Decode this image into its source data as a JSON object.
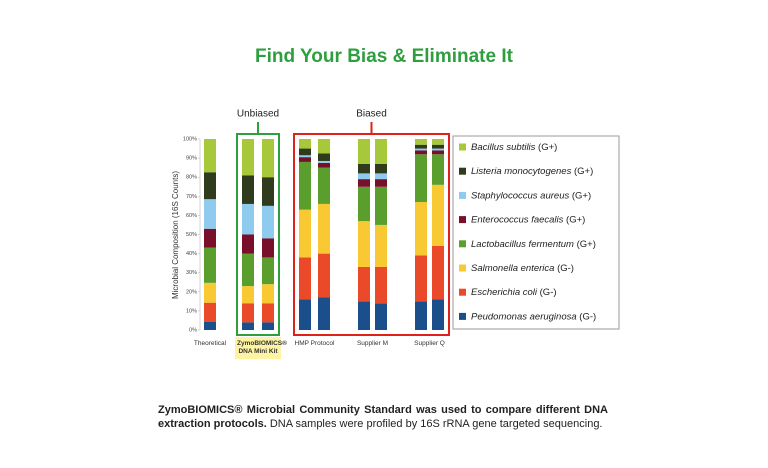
{
  "chart_data": {
    "type": "stacked_bar",
    "title": "Find Your Bias & Eliminate It",
    "y_label": "Microbial Composition (16S Counts)",
    "categories": [
      "Theoretical",
      "ZymoBIOMICS® DNA Mini Kit",
      null,
      "HMP Protocol",
      null,
      "Supplier M",
      null,
      "Supplier Q",
      null
    ],
    "highlight_category": 1,
    "annotations": [
      {
        "text": "Unbiased",
        "color": "#2e9e3e",
        "from": 1,
        "to": 2
      },
      {
        "text": "Biased",
        "color": "#e0201b",
        "from": 3,
        "to": 8
      }
    ],
    "series": [
      {
        "name": "Bacillus subtilis (G+)",
        "color": "#a8c83c",
        "values": [
          17.4,
          19,
          20,
          5,
          7.5,
          13,
          13,
          3,
          3
        ]
      },
      {
        "name": "Listeria monocytogenes (G+)",
        "color": "#2f3b1c",
        "values": [
          14.1,
          15,
          15,
          3.5,
          4,
          5,
          5,
          2,
          2
        ]
      },
      {
        "name": "Staphylococcus aureus (G+)",
        "color": "#8fcbef",
        "values": [
          15.5,
          16,
          17,
          1,
          1,
          3,
          3,
          1,
          1
        ]
      },
      {
        "name": "Enterococcus faecalis (G+)",
        "color": "#7a0f2b",
        "values": [
          9.9,
          10,
          10,
          2.5,
          2.5,
          4,
          4,
          2,
          2
        ]
      },
      {
        "name": "Lactobacillus fermentum (G+)",
        "color": "#5a9f2e",
        "values": [
          18.4,
          17,
          14,
          25,
          19,
          18,
          20,
          25,
          16
        ]
      },
      {
        "name": "Salmonella enterica (G-)",
        "color": "#f8c933",
        "values": [
          10.4,
          9,
          10,
          25,
          26,
          24,
          22,
          28,
          32
        ]
      },
      {
        "name": "Escherichia coli (G-)",
        "color": "#eb4a2a",
        "values": [
          10.1,
          10,
          10,
          22,
          23,
          18,
          19,
          24,
          28
        ]
      },
      {
        "name": "Peudomonas aeruginosa (G-)",
        "color": "#1b4f8c",
        "values": [
          4.2,
          4,
          4,
          16,
          17,
          15,
          14,
          15,
          16
        ]
      }
    ],
    "ylim": [
      0,
      100
    ],
    "yticks": [
      {
        "value": 0,
        "label": "0%"
      },
      {
        "value": 10,
        "label": "10%"
      },
      {
        "value": 20,
        "label": "20%"
      },
      {
        "value": 30,
        "label": "30%"
      },
      {
        "value": 40,
        "label": "40%"
      },
      {
        "value": 50,
        "label": "50%"
      },
      {
        "value": 60,
        "label": "60%"
      },
      {
        "value": 70,
        "label": "70%"
      },
      {
        "value": 80,
        "label": "80%"
      },
      {
        "value": 90,
        "label": "90%"
      },
      {
        "value": 100,
        "label": "100%"
      }
    ],
    "caption": {
      "bold": "ZymoBIOMICS® Microbial Community Standard was used to compare different DNA extraction protocols.",
      "text": "DNA samples were profiled by 16S rRNA gene targeted sequencing."
    }
  }
}
